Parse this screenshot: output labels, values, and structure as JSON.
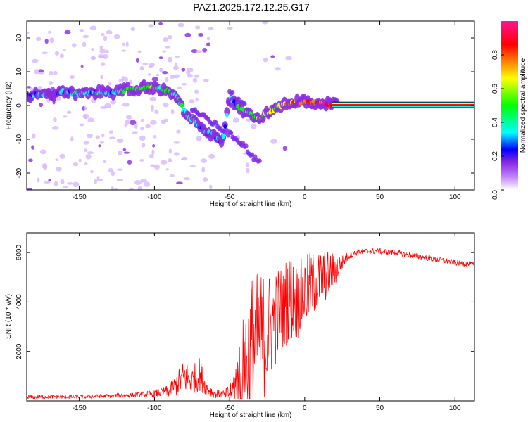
{
  "title": "PAZ1.2025.172.12.25.G17",
  "chart_data": [
    {
      "type": "heatmap",
      "xlabel": "Height of straight line (km)",
      "ylabel": "Frequency (Hz)",
      "xlim": [
        -185,
        113
      ],
      "ylim": [
        -25,
        25
      ],
      "xticks": [
        -150,
        -100,
        -50,
        0,
        50,
        100
      ],
      "yticks": [
        -20,
        -10,
        0,
        10,
        20
      ],
      "colorbar": {
        "label": "Normalized spectral amplitude",
        "range": [
          0,
          1
        ],
        "ticks": [
          "0.0",
          "0.2",
          "0.4",
          "0.6",
          "0.8"
        ],
        "colors": [
          "#ffffff",
          "#8a2be2",
          "#0000ff",
          "#00ffff",
          "#00ff00",
          "#ffff00",
          "#ff8000",
          "#ff0000",
          "#ff1493"
        ]
      },
      "ridge": {
        "x": [
          -180,
          -170,
          -160,
          -150,
          -140,
          -130,
          -120,
          -110,
          -100,
          -90,
          -85,
          -80,
          -75,
          -70,
          -65,
          -60,
          -55,
          -50,
          -45,
          -40,
          -35,
          -30,
          -25,
          -20,
          -15,
          -10,
          -5,
          0,
          10,
          20,
          30,
          50,
          80,
          113
        ],
        "y": [
          3,
          3.5,
          4,
          3.5,
          4,
          3.5,
          4.5,
          5,
          5.5,
          4,
          3,
          -2,
          -4,
          -6,
          -8,
          -9,
          -11,
          2,
          0,
          -2,
          -3,
          -4,
          -2,
          -1,
          0,
          0.5,
          1,
          1,
          0.5,
          0.3,
          0.2,
          0.2,
          0.2,
          0.2
        ],
        "amplitude": [
          0.2,
          0.2,
          0.25,
          0.3,
          0.3,
          0.25,
          0.4,
          0.45,
          0.45,
          0.4,
          0.35,
          0.3,
          0.3,
          0.25,
          0.25,
          0.2,
          0.2,
          0.25,
          0.3,
          0.35,
          0.4,
          0.45,
          0.5,
          0.55,
          0.6,
          0.65,
          0.7,
          0.75,
          0.8,
          0.85,
          0.9,
          0.95,
          0.95,
          0.95
        ]
      },
      "secondary_ridges": [
        {
          "x": [
            -75,
            -65,
            -55,
            -45,
            -40,
            -35,
            -30
          ],
          "y": [
            -1,
            -4,
            -7,
            -10,
            -12,
            -15,
            -17
          ]
        },
        {
          "x": [
            -50,
            -45,
            -40
          ],
          "y": [
            4,
            2,
            0
          ]
        }
      ]
    },
    {
      "type": "line",
      "xlabel": "Height of straight line (km)",
      "ylabel": "SNR (10 * v/v)",
      "xlim": [
        -185,
        113
      ],
      "ylim": [
        0,
        6800
      ],
      "xticks": [
        -150,
        -100,
        -50,
        0,
        50,
        100
      ],
      "yticks": [
        2000,
        4000,
        6000
      ],
      "series": [
        {
          "color": "#ff0000",
          "x": [
            -185,
            -170,
            -150,
            -130,
            -110,
            -100,
            -90,
            -85,
            -80,
            -75,
            -70,
            -65,
            -60,
            -55,
            -50,
            -45,
            -40,
            -35,
            -30,
            -25,
            -20,
            -15,
            -10,
            -5,
            0,
            5,
            10,
            15,
            20,
            25,
            30,
            35,
            40,
            50,
            60,
            70,
            80,
            90,
            100,
            113
          ],
          "y": [
            150,
            170,
            160,
            200,
            250,
            300,
            400,
            700,
            1000,
            800,
            1100,
            500,
            300,
            250,
            300,
            600,
            1500,
            2200,
            2500,
            2800,
            3300,
            3800,
            4200,
            4000,
            4400,
            4700,
            4900,
            5100,
            5300,
            5600,
            5900,
            6000,
            6050,
            6050,
            6000,
            5900,
            5800,
            5700,
            5600,
            5500
          ],
          "noise": [
            80,
            80,
            80,
            80,
            100,
            150,
            250,
            500,
            700,
            600,
            700,
            300,
            200,
            150,
            400,
            1500,
            2500,
            3000,
            2800,
            2500,
            2000,
            1800,
            1800,
            1600,
            1500,
            1400,
            1200,
            1000,
            700,
            300,
            150,
            120,
            120,
            120,
            120,
            120,
            120,
            120,
            120,
            120
          ]
        }
      ]
    }
  ]
}
